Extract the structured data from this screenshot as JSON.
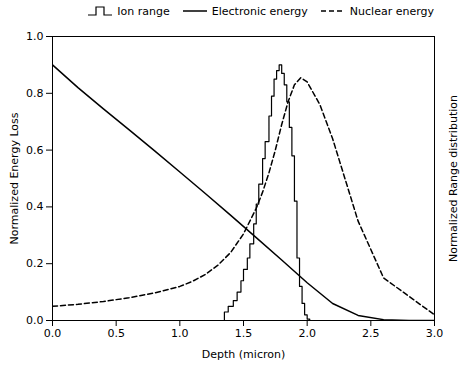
{
  "chart_data": {
    "type": "line",
    "xlabel": "Depth (micron)",
    "ylabel": "Normalized Energy Loss",
    "y2label": "Normalized Range distribution",
    "xlim": [
      0.0,
      3.0
    ],
    "xticks": [
      {
        "value": 0.0,
        "label": "0.0"
      },
      0.5,
      {
        "value": 1.0,
        "label": "1.0"
      },
      1.5,
      {
        "value": 2.0,
        "label": "2.0"
      },
      2.5,
      {
        "value": 3.0,
        "label": "3.0"
      }
    ],
    "ylim": [
      0.0,
      1.0
    ],
    "yticks": [
      {
        "value": 0.0,
        "label": "0.0"
      },
      0.2,
      0.4,
      0.6,
      0.8,
      {
        "value": 1.0,
        "label": "1.0"
      }
    ],
    "y2lim": [
      0.0,
      1.0
    ],
    "grid": false,
    "legend": "upper right",
    "series": [
      {
        "name": "Ion range",
        "type": "step",
        "axis": "y2",
        "color": "#000000",
        "line_style": "solid",
        "x": [
          0.0,
          1.3,
          1.35,
          1.38,
          1.42,
          1.45,
          1.48,
          1.5,
          1.53,
          1.55,
          1.58,
          1.6,
          1.62,
          1.65,
          1.67,
          1.7,
          1.72,
          1.74,
          1.76,
          1.78,
          1.8,
          1.82,
          1.84,
          1.86,
          1.88,
          1.9,
          1.92,
          1.94,
          1.96,
          1.98,
          2.0,
          2.02,
          3.0
        ],
        "values": [
          0.0,
          0.0,
          0.03,
          0.05,
          0.07,
          0.1,
          0.14,
          0.18,
          0.22,
          0.27,
          0.34,
          0.41,
          0.48,
          0.57,
          0.63,
          0.72,
          0.79,
          0.85,
          0.88,
          0.9,
          0.87,
          0.83,
          0.77,
          0.68,
          0.58,
          0.42,
          0.22,
          0.12,
          0.06,
          0.02,
          0.005,
          0.0,
          0.0
        ]
      },
      {
        "name": "Electronic energy",
        "type": "line",
        "color": "#000000",
        "line_style": "solid",
        "x": [
          0.0,
          0.2,
          0.4,
          0.6,
          0.8,
          1.0,
          1.2,
          1.4,
          1.6,
          1.8,
          2.0,
          2.2,
          2.4,
          2.6,
          2.8,
          3.0
        ],
        "values": [
          0.9,
          0.82,
          0.745,
          0.672,
          0.598,
          0.523,
          0.447,
          0.37,
          0.292,
          0.213,
          0.133,
          0.06,
          0.018,
          0.003,
          0.0,
          0.0
        ]
      },
      {
        "name": "Nuclear energy",
        "type": "line",
        "color": "#000000",
        "line_style": "dashed",
        "x": [
          0.0,
          0.2,
          0.4,
          0.6,
          0.8,
          1.0,
          1.1,
          1.2,
          1.3,
          1.4,
          1.5,
          1.6,
          1.65,
          1.7,
          1.75,
          1.8,
          1.85,
          1.9,
          1.95,
          2.0,
          2.1,
          2.2,
          2.4,
          2.6,
          3.0
        ],
        "values": [
          0.05,
          0.057,
          0.067,
          0.08,
          0.097,
          0.12,
          0.138,
          0.162,
          0.195,
          0.24,
          0.305,
          0.395,
          0.452,
          0.52,
          0.6,
          0.69,
          0.77,
          0.83,
          0.855,
          0.84,
          0.76,
          0.64,
          0.35,
          0.15,
          0.02
        ]
      }
    ]
  }
}
